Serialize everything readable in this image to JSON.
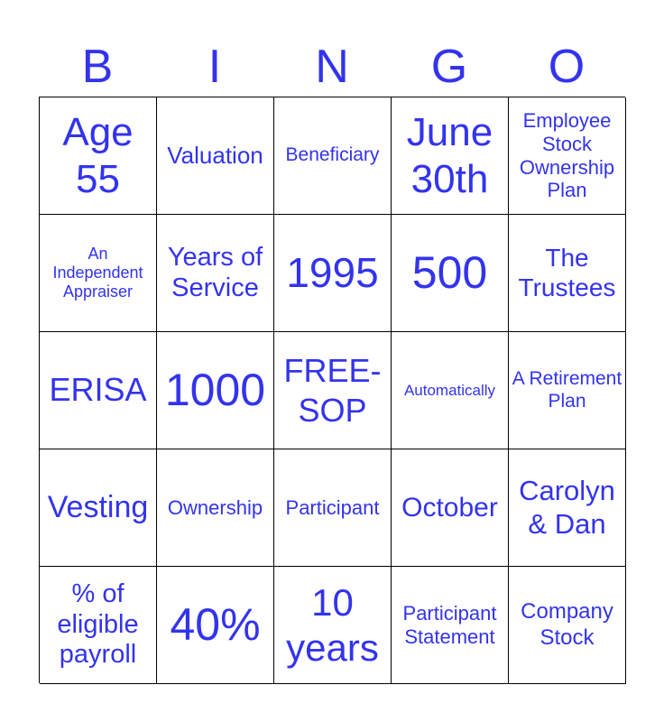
{
  "header": [
    "B",
    "I",
    "N",
    "G",
    "O"
  ],
  "cells": [
    "Age 55",
    "Valuation",
    "Beneficiary",
    "June 30th",
    "Employee Stock Ownership Plan",
    "An Independent Appraiser",
    "Years of Service",
    "1995",
    "500",
    "The Trustees",
    "ERISA",
    "1000",
    "FREE-SOP",
    "Automatically",
    "A Retirement Plan",
    "Vesting",
    "Ownership",
    "Participant",
    "October",
    "Carolyn & Dan",
    "% of eligible payroll",
    "40%",
    "10 years",
    "Participant Statement",
    "Company Stock"
  ],
  "colors": {
    "text": "#3333ee",
    "border": "#000000"
  }
}
